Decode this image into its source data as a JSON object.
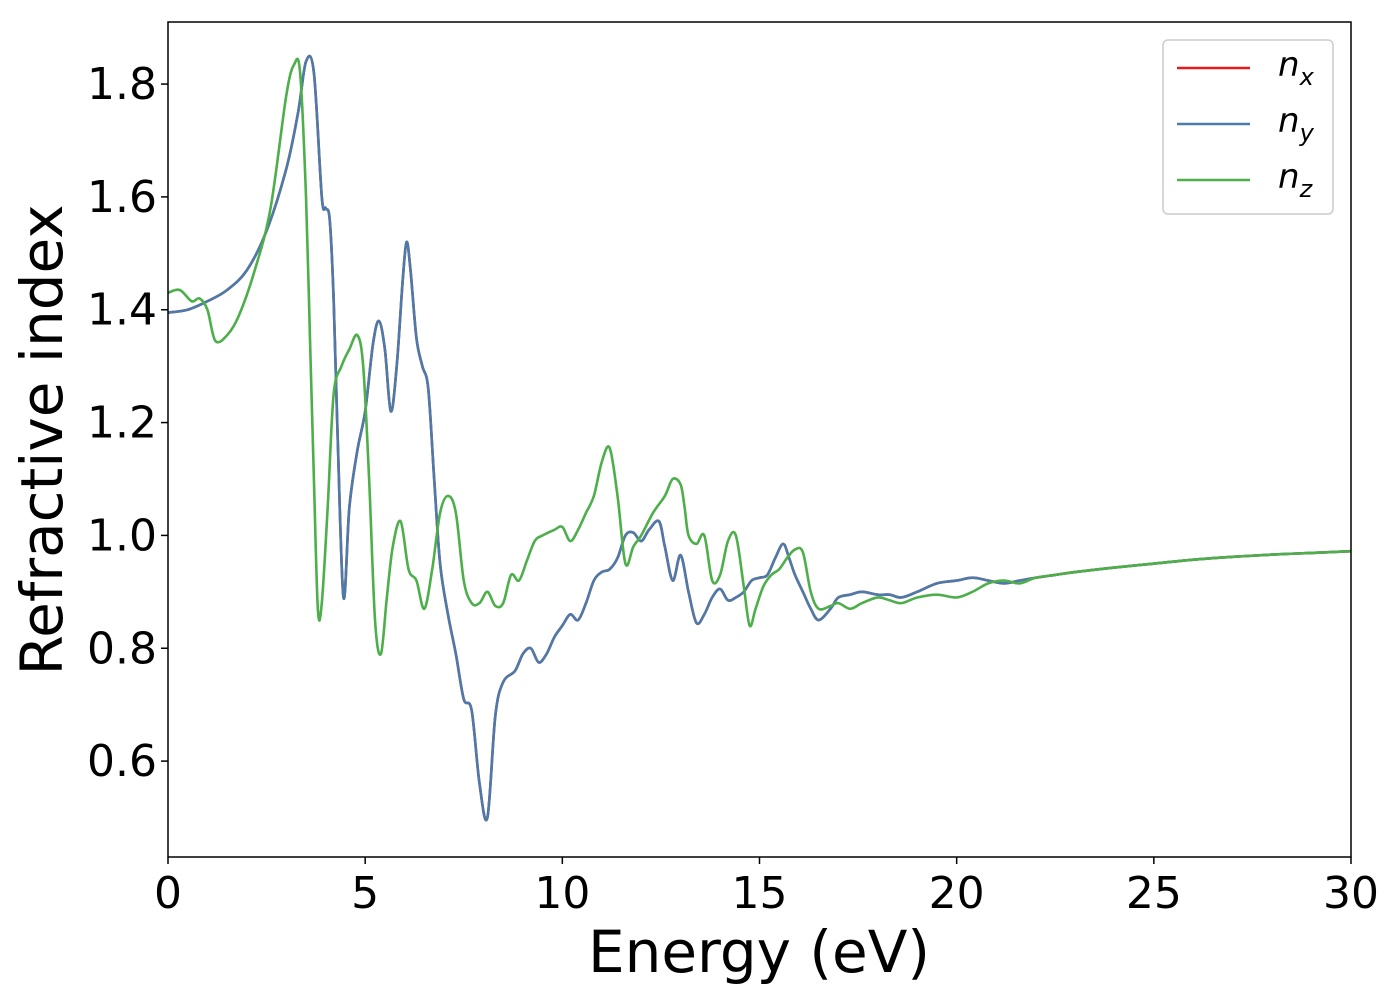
{
  "chart_data": {
    "type": "line",
    "xlabel": "Energy (eV)",
    "ylabel": "Refractive index",
    "xlim": [
      0,
      30
    ],
    "ylim": [
      0.43,
      1.91
    ],
    "xticks": [
      0,
      5,
      10,
      15,
      20,
      25,
      30
    ],
    "yticks": [
      0.6,
      0.8,
      1.0,
      1.2,
      1.4,
      1.6,
      1.8
    ],
    "xtick_labels": [
      "0",
      "5",
      "10",
      "15",
      "20",
      "25",
      "30"
    ],
    "ytick_labels": [
      "0.6",
      "0.8",
      "1.0",
      "1.2",
      "1.4",
      "1.6",
      "1.8"
    ],
    "grid": false,
    "legend_position": "top-right",
    "series": [
      {
        "name": "n_x",
        "legend_base": "n",
        "legend_sub": "x",
        "color": "#e41a1c",
        "x": [
          0,
          0.5,
          1,
          1.5,
          2,
          2.5,
          3,
          3.3,
          3.5,
          3.7,
          3.9,
          4.0,
          4.1,
          4.2,
          4.3,
          4.45,
          4.6,
          4.8,
          5.0,
          5.2,
          5.35,
          5.5,
          5.65,
          5.8,
          5.95,
          6.05,
          6.15,
          6.3,
          6.45,
          6.6,
          6.75,
          6.9,
          7.1,
          7.3,
          7.5,
          7.7,
          7.9,
          8.1,
          8.3,
          8.5,
          8.8,
          9.0,
          9.2,
          9.4,
          9.6,
          9.8,
          10.0,
          10.2,
          10.4,
          10.6,
          10.8,
          11.0,
          11.2,
          11.4,
          11.6,
          11.8,
          12.0,
          12.2,
          12.45,
          12.6,
          12.8,
          13.0,
          13.2,
          13.4,
          13.6,
          13.8,
          14.0,
          14.2,
          14.4,
          14.6,
          14.8,
          15.0,
          15.2,
          15.4,
          15.6,
          15.75,
          15.9,
          16.1,
          16.3,
          16.5,
          16.8,
          17.0,
          17.3,
          17.6,
          18.0,
          18.3,
          18.6,
          19.0,
          19.5,
          20.0,
          20.4,
          20.8,
          21.2,
          21.6,
          22.0,
          22.5,
          23.0,
          24.0,
          25.0,
          26.0,
          27.0,
          28.0,
          29.0,
          30.0
        ],
        "values": [
          1.395,
          1.4,
          1.415,
          1.435,
          1.47,
          1.54,
          1.65,
          1.75,
          1.84,
          1.82,
          1.6,
          1.58,
          1.56,
          1.42,
          1.18,
          0.89,
          1.05,
          1.15,
          1.22,
          1.34,
          1.38,
          1.33,
          1.22,
          1.3,
          1.45,
          1.52,
          1.47,
          1.35,
          1.3,
          1.26,
          1.1,
          0.95,
          0.86,
          0.79,
          0.71,
          0.69,
          0.56,
          0.5,
          0.68,
          0.74,
          0.76,
          0.79,
          0.8,
          0.775,
          0.79,
          0.82,
          0.84,
          0.86,
          0.85,
          0.88,
          0.92,
          0.935,
          0.94,
          0.96,
          1.0,
          1.005,
          0.99,
          1.01,
          1.025,
          0.98,
          0.92,
          0.965,
          0.9,
          0.845,
          0.86,
          0.89,
          0.905,
          0.885,
          0.89,
          0.9,
          0.92,
          0.925,
          0.93,
          0.96,
          0.985,
          0.96,
          0.93,
          0.9,
          0.87,
          0.85,
          0.87,
          0.89,
          0.895,
          0.9,
          0.895,
          0.895,
          0.89,
          0.9,
          0.915,
          0.92,
          0.925,
          0.92,
          0.915,
          0.92,
          0.925,
          0.93,
          0.935,
          0.943,
          0.95,
          0.957,
          0.962,
          0.966,
          0.969,
          0.972
        ]
      },
      {
        "name": "n_y",
        "legend_base": "n",
        "legend_sub": "y",
        "color": "#4a7bab",
        "x": [
          0,
          0.5,
          1,
          1.5,
          2,
          2.5,
          3,
          3.3,
          3.5,
          3.7,
          3.9,
          4.0,
          4.1,
          4.2,
          4.3,
          4.45,
          4.6,
          4.8,
          5.0,
          5.2,
          5.35,
          5.5,
          5.65,
          5.8,
          5.95,
          6.05,
          6.15,
          6.3,
          6.45,
          6.6,
          6.75,
          6.9,
          7.1,
          7.3,
          7.5,
          7.7,
          7.9,
          8.1,
          8.3,
          8.5,
          8.8,
          9.0,
          9.2,
          9.4,
          9.6,
          9.8,
          10.0,
          10.2,
          10.4,
          10.6,
          10.8,
          11.0,
          11.2,
          11.4,
          11.6,
          11.8,
          12.0,
          12.2,
          12.45,
          12.6,
          12.8,
          13.0,
          13.2,
          13.4,
          13.6,
          13.8,
          14.0,
          14.2,
          14.4,
          14.6,
          14.8,
          15.0,
          15.2,
          15.4,
          15.6,
          15.75,
          15.9,
          16.1,
          16.3,
          16.5,
          16.8,
          17.0,
          17.3,
          17.6,
          18.0,
          18.3,
          18.6,
          19.0,
          19.5,
          20.0,
          20.4,
          20.8,
          21.2,
          21.6,
          22.0,
          22.5,
          23.0,
          24.0,
          25.0,
          26.0,
          27.0,
          28.0,
          29.0,
          30.0
        ],
        "values": [
          1.395,
          1.4,
          1.415,
          1.435,
          1.47,
          1.54,
          1.65,
          1.75,
          1.84,
          1.82,
          1.6,
          1.58,
          1.56,
          1.42,
          1.18,
          0.89,
          1.05,
          1.15,
          1.22,
          1.34,
          1.38,
          1.33,
          1.22,
          1.3,
          1.45,
          1.52,
          1.47,
          1.35,
          1.3,
          1.26,
          1.1,
          0.95,
          0.86,
          0.79,
          0.71,
          0.69,
          0.56,
          0.5,
          0.68,
          0.74,
          0.76,
          0.79,
          0.8,
          0.775,
          0.79,
          0.82,
          0.84,
          0.86,
          0.85,
          0.88,
          0.92,
          0.935,
          0.94,
          0.96,
          1.0,
          1.005,
          0.99,
          1.01,
          1.025,
          0.98,
          0.92,
          0.965,
          0.9,
          0.845,
          0.86,
          0.89,
          0.905,
          0.885,
          0.89,
          0.9,
          0.92,
          0.925,
          0.93,
          0.96,
          0.985,
          0.96,
          0.93,
          0.9,
          0.87,
          0.85,
          0.87,
          0.89,
          0.895,
          0.9,
          0.895,
          0.895,
          0.89,
          0.9,
          0.915,
          0.92,
          0.925,
          0.92,
          0.915,
          0.92,
          0.925,
          0.93,
          0.935,
          0.943,
          0.95,
          0.957,
          0.962,
          0.966,
          0.969,
          0.972
        ]
      },
      {
        "name": "n_z",
        "legend_base": "n",
        "legend_sub": "z",
        "color": "#4daf4a",
        "x": [
          0,
          0.3,
          0.6,
          0.8,
          1.0,
          1.2,
          1.5,
          1.8,
          2.2,
          2.6,
          3.0,
          3.2,
          3.35,
          3.5,
          3.6,
          3.7,
          3.8,
          3.9,
          4.05,
          4.2,
          4.4,
          4.6,
          4.8,
          4.95,
          5.1,
          5.25,
          5.4,
          5.55,
          5.7,
          5.9,
          6.1,
          6.3,
          6.5,
          6.7,
          6.9,
          7.1,
          7.3,
          7.5,
          7.7,
          7.9,
          8.1,
          8.3,
          8.5,
          8.7,
          8.9,
          9.1,
          9.3,
          9.5,
          9.8,
          10.0,
          10.2,
          10.4,
          10.6,
          10.8,
          11.0,
          11.2,
          11.4,
          11.6,
          11.8,
          12.0,
          12.3,
          12.6,
          12.8,
          13.0,
          13.1,
          13.2,
          13.4,
          13.6,
          13.8,
          14.0,
          14.2,
          14.4,
          14.6,
          14.75,
          14.9,
          15.1,
          15.3,
          15.5,
          15.7,
          15.9,
          16.1,
          16.3,
          16.5,
          16.8,
          17.0,
          17.3,
          17.6,
          18.0,
          18.3,
          18.6,
          19.0,
          19.5,
          20.0,
          20.4,
          20.8,
          21.2,
          21.6,
          22.0,
          22.5,
          23.0,
          24.0,
          25.0,
          26.0,
          27.0,
          28.0,
          29.0,
          30.0
        ],
        "values": [
          1.43,
          1.435,
          1.415,
          1.42,
          1.4,
          1.345,
          1.355,
          1.39,
          1.47,
          1.58,
          1.78,
          1.835,
          1.82,
          1.6,
          1.35,
          1.1,
          0.87,
          0.88,
          1.05,
          1.25,
          1.3,
          1.33,
          1.355,
          1.3,
          1.1,
          0.85,
          0.79,
          0.89,
          0.98,
          1.025,
          0.94,
          0.92,
          0.87,
          0.94,
          1.04,
          1.07,
          1.04,
          0.92,
          0.88,
          0.88,
          0.9,
          0.875,
          0.88,
          0.93,
          0.92,
          0.955,
          0.99,
          1.0,
          1.01,
          1.015,
          0.99,
          1.01,
          1.04,
          1.07,
          1.13,
          1.155,
          1.07,
          0.95,
          0.98,
          1.0,
          1.04,
          1.07,
          1.1,
          1.09,
          1.05,
          1.0,
          0.985,
          1.0,
          0.92,
          0.93,
          0.99,
          1.0,
          0.91,
          0.84,
          0.87,
          0.91,
          0.93,
          0.94,
          0.96,
          0.975,
          0.97,
          0.9,
          0.87,
          0.875,
          0.88,
          0.87,
          0.88,
          0.89,
          0.885,
          0.88,
          0.89,
          0.895,
          0.89,
          0.9,
          0.915,
          0.92,
          0.915,
          0.925,
          0.93,
          0.935,
          0.943,
          0.95,
          0.957,
          0.962,
          0.966,
          0.969,
          0.972
        ]
      }
    ]
  }
}
